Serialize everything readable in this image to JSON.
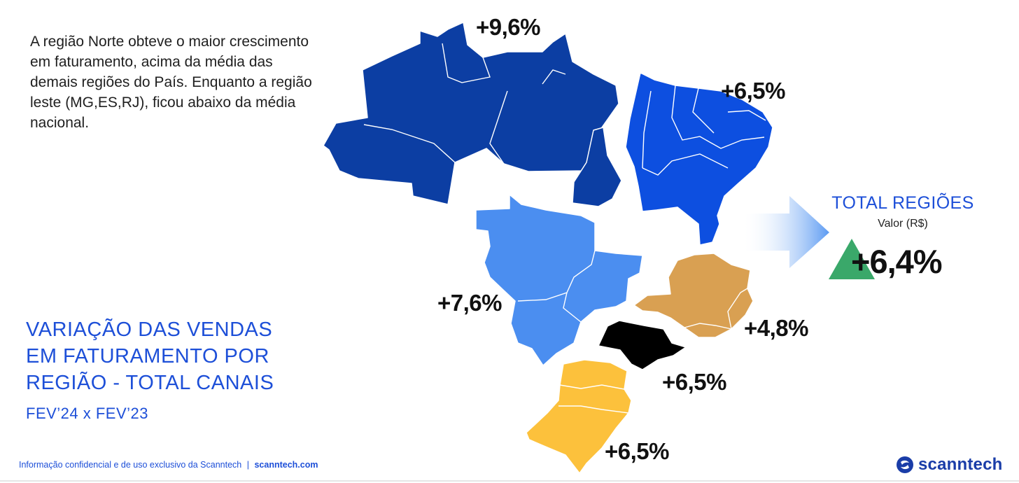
{
  "intro_text": "A região Norte obteve o maior crescimento em faturamento, acima da média das demais regiões do País. Enquanto a região leste (MG,ES,RJ), ficou abaixo da média nacional.",
  "title_lines": [
    "VARIAÇÃO DAS VENDAS",
    "EM FATURAMENTO POR",
    "REGIÃO -  TOTAL CANAIS"
  ],
  "subtitle": "FEV’24 x FEV’23",
  "regions": {
    "norte": {
      "label": "+9,6%",
      "color": "#0c3ea3"
    },
    "nordeste": {
      "label": "+6,5%",
      "color": "#0d4fe0"
    },
    "centro_oeste": {
      "label": "+7,6%",
      "color": "#4b8ef0"
    },
    "leste": {
      "label": "+4,8%",
      "color": "#d9a052"
    },
    "sao_paulo": {
      "label": "+6,5%",
      "color": "#000000"
    },
    "sul": {
      "label": "+6,5%",
      "color": "#fcc13c"
    }
  },
  "total": {
    "title": "TOTAL REGIÕES",
    "subtitle": "Valor (R$)",
    "value": "+6,4%",
    "trend": "up-triangle-icon",
    "trend_color": "#3aa86a"
  },
  "footer": {
    "text": "Informação confidencial e de uso exclusivo da Scanntech",
    "separator": "|",
    "url": "scanntech.com"
  },
  "logo_text": "scanntech"
}
